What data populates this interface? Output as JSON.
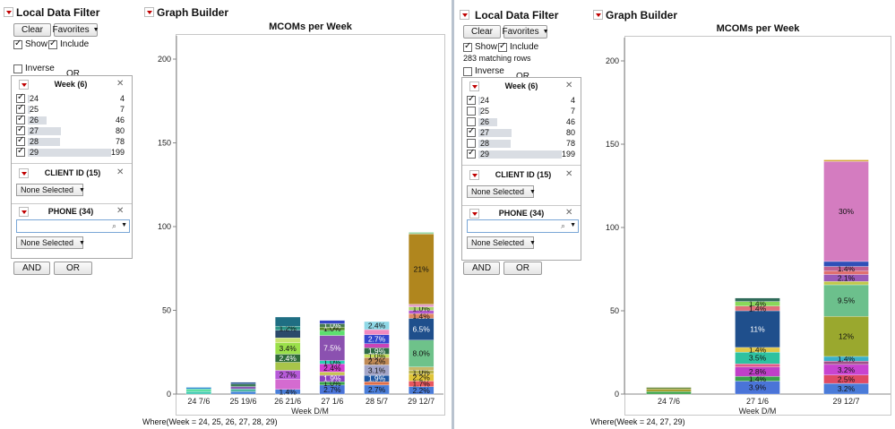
{
  "left": {
    "filter": {
      "title": "Local Data Filter",
      "clear_label": "Clear",
      "favorites_label": "Favorites",
      "show_label": "Show",
      "include_label": "Include",
      "matching_rows": "",
      "inverse_label": "Inverse",
      "or_label": "OR",
      "week_title": "Week (6)",
      "weeks": [
        {
          "label": "24",
          "count": "4",
          "checked": true,
          "value": 4
        },
        {
          "label": "25",
          "count": "7",
          "checked": true,
          "value": 7
        },
        {
          "label": "26",
          "count": "46",
          "checked": true,
          "value": 46
        },
        {
          "label": "27",
          "count": "80",
          "checked": true,
          "value": 80
        },
        {
          "label": "28",
          "count": "78",
          "checked": true,
          "value": 78
        },
        {
          "label": "29",
          "count": "199",
          "checked": true,
          "value": 199
        }
      ],
      "client_title": "CLIENT ID (15)",
      "client_select": "None Selected",
      "phone_title": "PHONE (34)",
      "phone_select": "None Selected",
      "and_label": "AND",
      "or_button_label": "OR"
    },
    "graph_title": "Graph Builder",
    "where_text": "Where(Week = 24, 25, 26, 27, 28, 29)"
  },
  "right": {
    "filter": {
      "title": "Local Data Filter",
      "clear_label": "Clear",
      "favorites_label": "Favorites",
      "show_label": "Show",
      "include_label": "Include",
      "matching_rows": "283 matching rows",
      "inverse_label": "Inverse",
      "or_label": "OR",
      "week_title": "Week (6)",
      "weeks": [
        {
          "label": "24",
          "count": "4",
          "checked": true,
          "value": 4
        },
        {
          "label": "25",
          "count": "7",
          "checked": false,
          "value": 7
        },
        {
          "label": "26",
          "count": "46",
          "checked": false,
          "value": 46
        },
        {
          "label": "27",
          "count": "80",
          "checked": true,
          "value": 80
        },
        {
          "label": "28",
          "count": "78",
          "checked": false,
          "value": 78
        },
        {
          "label": "29",
          "count": "199",
          "checked": true,
          "value": 199
        }
      ],
      "client_title": "CLIENT ID (15)",
      "client_select": "None Selected",
      "phone_title": "PHONE (34)",
      "phone_select": "None Selected",
      "and_label": "AND",
      "or_button_label": "OR"
    },
    "graph_title": "Graph Builder",
    "where_text": "Where(Week = 24, 27, 29)"
  },
  "chart_data": [
    {
      "type": "bar",
      "title": "MCOMs per Week",
      "xlabel": "Week D/M",
      "ylabel": "",
      "ylim": [
        0,
        205
      ],
      "yticks": [
        0,
        50,
        100,
        150,
        200
      ],
      "categories": [
        "24 7/6",
        "25 19/6",
        "26 21/6",
        "27 1/6",
        "28 5/7",
        "29 12/7"
      ],
      "stacks": [
        [
          {
            "v": 1.5,
            "c": "#3fc9b0",
            "t": ""
          },
          {
            "v": 1.5,
            "c": "#5ce0a3",
            "t": ""
          },
          {
            "v": 1,
            "c": "#2e8bd1",
            "t": ""
          }
        ],
        [
          {
            "v": 1.5,
            "c": "#3f7fd8",
            "t": ""
          },
          {
            "v": 1.5,
            "c": "#4fb8a0",
            "t": ""
          },
          {
            "v": 1.5,
            "c": "#8b5ab7",
            "t": ""
          },
          {
            "v": 1.5,
            "c": "#3a7a55",
            "t": ""
          },
          {
            "v": 1,
            "c": "#1f4e8c",
            "t": ""
          }
        ],
        [
          {
            "v": 2.8,
            "c": "#4a7fd9",
            "t": "1.4%"
          },
          {
            "v": 6,
            "c": "#d46bd0",
            "t": ""
          },
          {
            "v": 5.4,
            "c": "#b65ad8",
            "t": "2.7%"
          },
          {
            "v": 4.8,
            "c": "#a8c54a",
            "t": ""
          },
          {
            "v": 4.8,
            "c": "#2f6b3a",
            "t": "2.4%"
          },
          {
            "v": 6.8,
            "c": "#9be04a",
            "t": "3.4%"
          },
          {
            "v": 3,
            "c": "#c9e36f",
            "t": ""
          },
          {
            "v": 4.5,
            "c": "#2c4a6a",
            "t": ""
          },
          {
            "v": 2.4,
            "c": "#2d9487",
            "t": "1.2%"
          },
          {
            "v": 5.5,
            "c": "#1f6e83",
            "t": ""
          }
        ],
        [
          {
            "v": 5.4,
            "c": "#4a74d8",
            "t": "2.7%"
          },
          {
            "v": 2,
            "c": "#3aa34a",
            "t": "1.0%"
          },
          {
            "v": 3.8,
            "c": "#8a3fc1",
            "t": "1.9%"
          },
          {
            "v": 2,
            "c": "#c7c255",
            "t": ""
          },
          {
            "v": 4.8,
            "c": "#d23fd3",
            "t": "2.4%"
          },
          {
            "v": 2,
            "c": "#2bcfb3",
            "t": "1.0%"
          },
          {
            "v": 15,
            "c": "#8b51b0",
            "t": "7.5%"
          },
          {
            "v": 3,
            "c": "#5de06f",
            "t": ""
          },
          {
            "v": 2,
            "c": "#5a8a2a",
            "t": "1.0%"
          },
          {
            "v": 2,
            "c": "#477a50",
            "t": "1.0%"
          },
          {
            "v": 2,
            "c": "#3545c7",
            "t": ""
          }
        ],
        [
          {
            "v": 5.4,
            "c": "#4a7dd8",
            "t": "2.7%"
          },
          {
            "v": 2,
            "c": "#e06f4a",
            "t": ""
          },
          {
            "v": 3.8,
            "c": "#1d56a2",
            "t": "1.9%"
          },
          {
            "v": 6.2,
            "c": "#a3a5c8",
            "t": "3.1%"
          },
          {
            "v": 4.4,
            "c": "#c08a55",
            "t": "2.2%"
          },
          {
            "v": 2,
            "c": "#c7e05a",
            "t": "1.0%"
          },
          {
            "v": 3.8,
            "c": "#2e6b45",
            "t": "1.9%"
          },
          {
            "v": 2.5,
            "c": "#c944b8",
            "t": ""
          },
          {
            "v": 5.4,
            "c": "#3346cc",
            "t": "2.7%"
          },
          {
            "v": 3,
            "c": "#f08ac0",
            "t": ""
          },
          {
            "v": 4.8,
            "c": "#8fd8e6",
            "t": "2.4%"
          }
        ],
        [
          {
            "v": 4.4,
            "c": "#4a7bd8",
            "t": "2.2%"
          },
          {
            "v": 3.4,
            "c": "#e8575f",
            "t": "1.7%"
          },
          {
            "v": 4.4,
            "c": "#e0c53a",
            "t": "2.2%"
          },
          {
            "v": 2,
            "c": "#b9b44d",
            "t": "1.0%"
          },
          {
            "v": 2,
            "c": "#c7b868",
            "t": ""
          },
          {
            "v": 16,
            "c": "#6ec28a",
            "t": "8.0%"
          },
          {
            "v": 13,
            "c": "#1f4f8c",
            "t": "6.5%"
          },
          {
            "v": 2.8,
            "c": "#e08a64",
            "t": "1.4%"
          },
          {
            "v": 2,
            "c": "#b45bd0",
            "t": ""
          },
          {
            "v": 2,
            "c": "#a8d86a",
            "t": "1.0%"
          },
          {
            "v": 1.6,
            "c": "#e4a0c8",
            "t": ""
          },
          {
            "v": 42,
            "c": "#b0861e",
            "t": "21%"
          },
          {
            "v": 1,
            "c": "#9ad8a8",
            "t": ""
          }
        ]
      ]
    },
    {
      "type": "bar",
      "title": "MCOMs per Week",
      "xlabel": "Week D/M",
      "ylabel": "",
      "ylim": [
        0,
        205
      ],
      "yticks": [
        0,
        50,
        100,
        150,
        200
      ],
      "categories": [
        "24 7/6",
        "27 1/6",
        "29 12/7"
      ],
      "stacks": [
        [
          {
            "v": 1.5,
            "c": "#3aa34a",
            "t": ""
          },
          {
            "v": 1.5,
            "c": "#a8a030",
            "t": ""
          },
          {
            "v": 1,
            "c": "#6a8a3a",
            "t": ""
          }
        ],
        [
          {
            "v": 7.8,
            "c": "#4a74d8",
            "t": "3.9%"
          },
          {
            "v": 2.8,
            "c": "#3aa34a",
            "t": "1.4%"
          },
          {
            "v": 5.6,
            "c": "#c040c8",
            "t": "2.8%"
          },
          {
            "v": 2,
            "c": "#e05a8a",
            "t": ""
          },
          {
            "v": 7,
            "c": "#2ec2a0",
            "t": "3.5%"
          },
          {
            "v": 2.8,
            "c": "#e0c84a",
            "t": "1.4%"
          },
          {
            "v": 22,
            "c": "#1f4f8c",
            "t": "11%"
          },
          {
            "v": 2.8,
            "c": "#e0707a",
            "t": "1.4%"
          },
          {
            "v": 2.8,
            "c": "#8ad85a",
            "t": "1.4%"
          },
          {
            "v": 2,
            "c": "#2f6b5a",
            "t": ""
          }
        ],
        [
          {
            "v": 6.4,
            "c": "#4a7bd8",
            "t": "3.2%"
          },
          {
            "v": 5,
            "c": "#e04a64",
            "t": "2.5%"
          },
          {
            "v": 6.4,
            "c": "#c844d0",
            "t": "3.2%"
          },
          {
            "v": 2,
            "c": "#a0508a",
            "t": ""
          },
          {
            "v": 2.8,
            "c": "#3ab0c8",
            "t": "1.4%"
          },
          {
            "v": 24,
            "c": "#9aa82e",
            "t": "12%"
          },
          {
            "v": 19,
            "c": "#6cc08c",
            "t": "9.5%"
          },
          {
            "v": 2,
            "c": "#c0c84a",
            "t": ""
          },
          {
            "v": 4.2,
            "c": "#9a5ab8",
            "t": "2.1%"
          },
          {
            "v": 2,
            "c": "#e07070",
            "t": ""
          },
          {
            "v": 2.8,
            "c": "#c06090",
            "t": "1.4%"
          },
          {
            "v": 3,
            "c": "#2f4fb8",
            "t": ""
          },
          {
            "v": 60,
            "c": "#d47cc0",
            "t": "30%"
          },
          {
            "v": 1,
            "c": "#d4a83a",
            "t": ""
          }
        ]
      ]
    }
  ]
}
